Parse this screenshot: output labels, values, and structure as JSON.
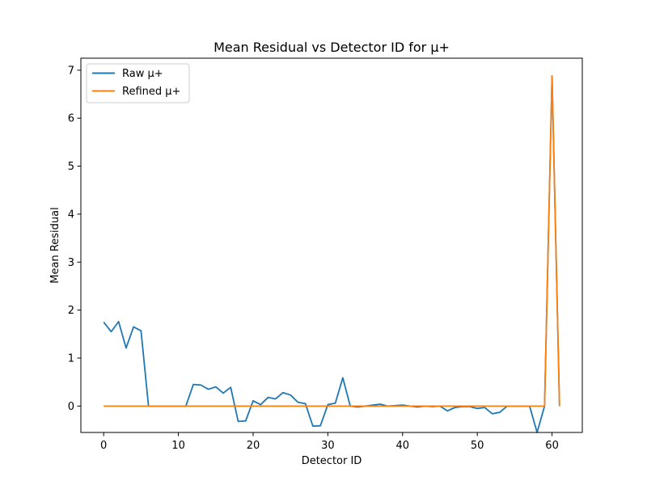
{
  "chart_data": {
    "type": "line",
    "title": "Mean Residual vs Detector ID for μ+",
    "xlabel": "Detector ID",
    "ylabel": "Mean Residual",
    "xlim": [
      -3.05,
      64.05
    ],
    "ylim": [
      -0.55,
      7.25
    ],
    "xticks": [
      0,
      10,
      20,
      30,
      40,
      50,
      60
    ],
    "yticks": [
      0,
      1,
      2,
      3,
      4,
      5,
      6,
      7
    ],
    "grid": false,
    "legend_position": "upper-left",
    "x": [
      0,
      1,
      2,
      3,
      4,
      5,
      6,
      7,
      8,
      9,
      10,
      11,
      12,
      13,
      14,
      15,
      16,
      17,
      18,
      19,
      20,
      21,
      22,
      23,
      24,
      25,
      26,
      27,
      28,
      29,
      30,
      31,
      32,
      33,
      34,
      35,
      36,
      37,
      38,
      39,
      40,
      41,
      42,
      43,
      44,
      45,
      46,
      47,
      48,
      49,
      50,
      51,
      52,
      53,
      54,
      55,
      56,
      57,
      58,
      59,
      60,
      61
    ],
    "series": [
      {
        "name": "Raw μ+",
        "color": "#1f77b4",
        "values": [
          1.75,
          1.55,
          1.76,
          1.21,
          1.65,
          1.57,
          0,
          0,
          0,
          0,
          0,
          0,
          0.45,
          0.44,
          0.35,
          0.4,
          0.27,
          0.39,
          -0.32,
          -0.31,
          0.11,
          0.03,
          0.18,
          0.15,
          0.28,
          0.23,
          0.08,
          0.05,
          -0.42,
          -0.41,
          0.03,
          0.06,
          0.59,
          0.0,
          -0.02,
          0.0,
          0.02,
          0.04,
          0.0,
          0.01,
          0.02,
          0.0,
          -0.02,
          0.0,
          -0.01,
          0.0,
          -0.1,
          -0.03,
          -0.01,
          -0.01,
          -0.05,
          -0.03,
          -0.16,
          -0.13,
          0.0,
          0.0,
          0.0,
          0.0,
          -0.55,
          0.0,
          6.88,
          0.0
        ]
      },
      {
        "name": "Refined μ+",
        "color": "#ff7f0e",
        "values": [
          0,
          0,
          0,
          0,
          0,
          0,
          0,
          0,
          0,
          0,
          0,
          0,
          0,
          0,
          0,
          0,
          0,
          0,
          0,
          0,
          0,
          0,
          0,
          0,
          0,
          0,
          0,
          0,
          0,
          0,
          0,
          0,
          0,
          0,
          0,
          0,
          0,
          0,
          0,
          0,
          0,
          0,
          0,
          0,
          0,
          0,
          0,
          0,
          0,
          0,
          0,
          0,
          0,
          0,
          0,
          0,
          0,
          0,
          0,
          0,
          6.88,
          0.0
        ]
      }
    ]
  }
}
